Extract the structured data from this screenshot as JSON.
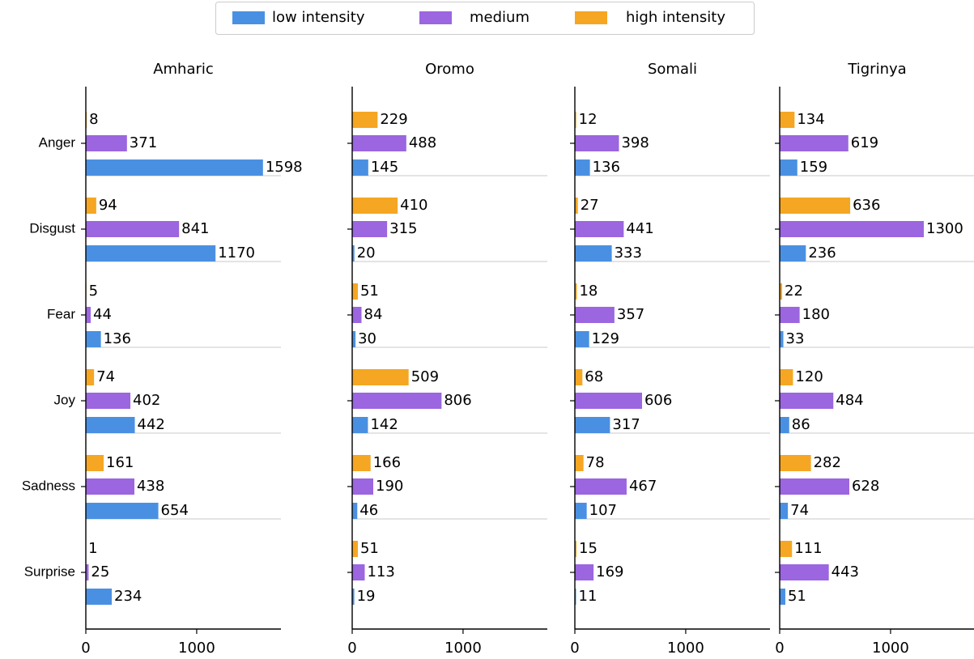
{
  "chart_data": [
    {
      "type": "bar",
      "title": "Amharic",
      "categories": [
        "Anger",
        "Disgust",
        "Fear",
        "Joy",
        "Sadness",
        "Surprise"
      ],
      "series": [
        {
          "name": "low intensity",
          "color": "#4a90e2",
          "values": [
            1598,
            1170,
            136,
            442,
            654,
            234
          ]
        },
        {
          "name": "medium",
          "color": "#9b66e0",
          "values": [
            371,
            841,
            44,
            402,
            438,
            25
          ]
        },
        {
          "name": "high intensity",
          "color": "#f5a623",
          "values": [
            8,
            94,
            5,
            74,
            161,
            1
          ]
        }
      ],
      "xlim": [
        0,
        1760
      ],
      "xticks": [
        0,
        1000
      ]
    },
    {
      "type": "bar",
      "title": "Oromo",
      "categories": [
        "Anger",
        "Disgust",
        "Fear",
        "Joy",
        "Sadness",
        "Surprise"
      ],
      "series": [
        {
          "name": "low intensity",
          "color": "#4a90e2",
          "values": [
            145,
            20,
            30,
            142,
            46,
            19
          ]
        },
        {
          "name": "medium",
          "color": "#9b66e0",
          "values": [
            488,
            315,
            84,
            806,
            190,
            113
          ]
        },
        {
          "name": "high intensity",
          "color": "#f5a623",
          "values": [
            229,
            410,
            51,
            509,
            166,
            51
          ]
        }
      ],
      "xlim": [
        0,
        1760
      ],
      "xticks": [
        0,
        1000
      ]
    },
    {
      "type": "bar",
      "title": "Somali",
      "categories": [
        "Anger",
        "Disgust",
        "Fear",
        "Joy",
        "Sadness",
        "Surprise"
      ],
      "series": [
        {
          "name": "low intensity",
          "color": "#4a90e2",
          "values": [
            136,
            333,
            129,
            317,
            107,
            11
          ]
        },
        {
          "name": "medium",
          "color": "#9b66e0",
          "values": [
            398,
            441,
            357,
            606,
            467,
            169
          ]
        },
        {
          "name": "high intensity",
          "color": "#f5a623",
          "values": [
            12,
            27,
            18,
            68,
            78,
            15
          ]
        }
      ],
      "xlim": [
        0,
        1760
      ],
      "xticks": [
        0,
        1000
      ]
    },
    {
      "type": "bar",
      "title": "Tigrinya",
      "categories": [
        "Anger",
        "Disgust",
        "Fear",
        "Joy",
        "Sadness",
        "Surprise"
      ],
      "series": [
        {
          "name": "low intensity",
          "color": "#4a90e2",
          "values": [
            159,
            236,
            33,
            86,
            74,
            51
          ]
        },
        {
          "name": "medium",
          "color": "#9b66e0",
          "values": [
            619,
            1300,
            180,
            484,
            628,
            443
          ]
        },
        {
          "name": "high intensity",
          "color": "#f5a623",
          "values": [
            134,
            636,
            22,
            120,
            282,
            111
          ]
        }
      ],
      "xlim": [
        0,
        1760
      ],
      "xticks": [
        0,
        1000
      ]
    }
  ]
}
